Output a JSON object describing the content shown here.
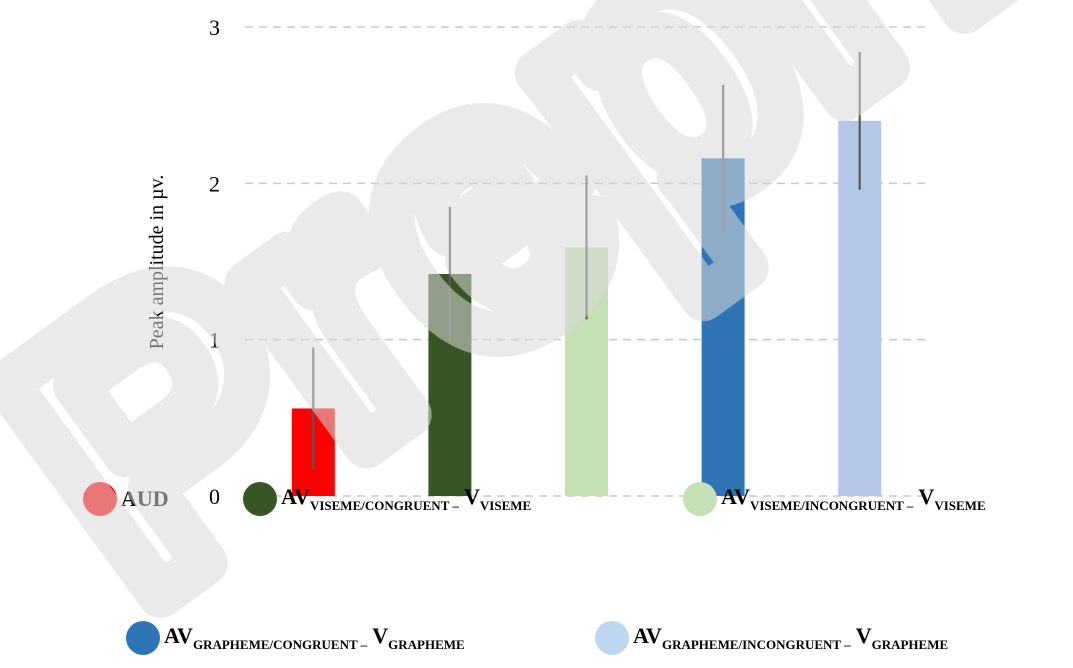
{
  "chart_data": {
    "type": "bar",
    "title": "",
    "xlabel": "",
    "ylabel": "Peak amplitude in µv.",
    "ylim": [
      0,
      3
    ],
    "yticks": [
      0,
      1,
      2,
      3
    ],
    "grid": true,
    "legend_position": "bottom",
    "categories": [
      "AUD",
      "AV_VISEME/CONGRUENT – V_VISEME",
      "AV_VISEME/INCONGRUENT – V_VISEME",
      "AV_GRAPHEME/CONGRUENT – V_GRAPHEME",
      "AV_GRAPHEME/INCONGRUENT – V_GRAPHEME"
    ],
    "values": [
      0.56,
      1.42,
      1.59,
      2.16,
      2.4
    ],
    "error": [
      0.39,
      0.43,
      0.46,
      0.47,
      0.44
    ],
    "colors": [
      "#ff0000",
      "#375623",
      "#c5e0b4",
      "#2e75b6",
      "#b4c7e7"
    ]
  },
  "legend": [
    {
      "main": "AUD",
      "sub1": "",
      "mid": "",
      "sub2": "",
      "color": "#ff0000"
    },
    {
      "main": "AV",
      "sub1": "VISEME/CONGRUENT –",
      "mid": " V",
      "sub2": "VISEME",
      "color": "#375623"
    },
    {
      "main": "AV",
      "sub1": "VISEME/INCONGRUENT –",
      "mid": " V",
      "sub2": "VISEME",
      "color": "#c5e0b4"
    },
    {
      "main": "AV",
      "sub1": "GRAPHEME/CONGRUENT –",
      "mid": " V",
      "sub2": "GRAPHEME",
      "color": "#2e75b6"
    },
    {
      "main": "AV",
      "sub1": "GRAPHEME/INCONGRUENT –",
      "mid": " V",
      "sub2": "GRAPHEME",
      "color": "#bdd7ee"
    }
  ],
  "watermark": {
    "text": "Preprint",
    "color": "#d9d9d9"
  }
}
